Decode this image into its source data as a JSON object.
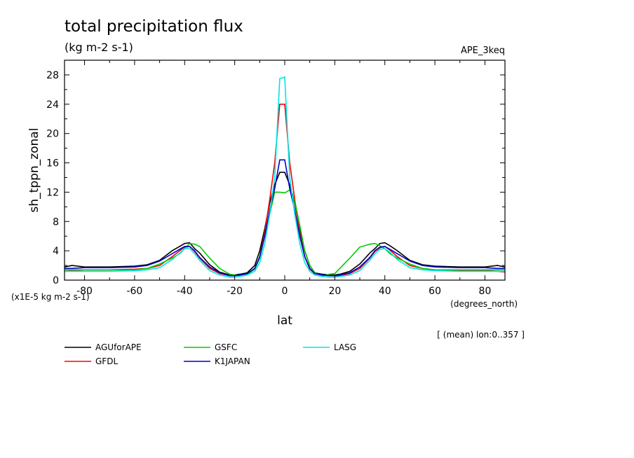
{
  "chart_data": {
    "type": "line",
    "title": "total precipitation flux",
    "subtitle": "(kg m-2 s-1)",
    "experiment": "APE_3keq",
    "ylabel": "sh_tppn_zonal",
    "xlabel": "lat",
    "x_units": "(degrees_north)",
    "y_scale_note": "(x1E-5 kg m-2 s-1)",
    "footnote": "[ (mean) lon:0..357 ]",
    "xlim": [
      -88,
      88
    ],
    "ylim": [
      0,
      30
    ],
    "xticks": [
      -80,
      -60,
      -40,
      -20,
      0,
      20,
      40,
      60,
      80
    ],
    "yticks": [
      0,
      4,
      8,
      12,
      16,
      20,
      24,
      28
    ],
    "x": [
      -88,
      -85,
      -80,
      -70,
      -60,
      -55,
      -50,
      -45,
      -42,
      -40,
      -38,
      -36,
      -34,
      -30,
      -26,
      -22,
      -20,
      -18,
      -15,
      -12,
      -10,
      -8,
      -6,
      -4,
      -2,
      0,
      2,
      4,
      6,
      8,
      10,
      12,
      15,
      18,
      20,
      22,
      26,
      30,
      34,
      36,
      38,
      40,
      42,
      45,
      50,
      55,
      60,
      70,
      80,
      85,
      88
    ],
    "series": [
      {
        "name": "AGUforAPE",
        "color": "#000000",
        "values": [
          1.8,
          2.0,
          1.8,
          1.8,
          1.9,
          2.1,
          2.7,
          4.0,
          4.6,
          5.0,
          5.1,
          4.3,
          3.7,
          2.1,
          1.1,
          0.7,
          0.7,
          0.8,
          1.0,
          2.0,
          4.0,
          7.0,
          10.5,
          13.0,
          14.7,
          14.7,
          13.0,
          10.5,
          7.0,
          4.0,
          2.0,
          1.0,
          0.8,
          0.7,
          0.7,
          0.8,
          1.2,
          2.2,
          3.7,
          4.3,
          5.0,
          5.1,
          4.7,
          4.0,
          2.7,
          2.1,
          1.9,
          1.8,
          1.8,
          2.0,
          1.8
        ]
      },
      {
        "name": "GFDL",
        "color": "#ff0000",
        "values": [
          1.2,
          1.3,
          1.4,
          1.4,
          1.5,
          1.6,
          2.0,
          3.2,
          4.0,
          4.5,
          4.6,
          3.9,
          3.0,
          1.6,
          0.9,
          0.6,
          0.6,
          0.7,
          0.9,
          1.5,
          3.2,
          6.5,
          11.0,
          16.0,
          24.0,
          24.0,
          16.0,
          11.0,
          6.5,
          3.2,
          1.5,
          0.9,
          0.7,
          0.6,
          0.6,
          0.6,
          0.9,
          1.6,
          3.0,
          3.9,
          4.4,
          4.6,
          4.1,
          3.2,
          2.0,
          1.6,
          1.4,
          1.3,
          1.3,
          1.2,
          1.1
        ]
      },
      {
        "name": "GSFC",
        "color": "#00cc00",
        "values": [
          1.4,
          1.4,
          1.4,
          1.4,
          1.4,
          1.6,
          2.2,
          3.0,
          3.6,
          4.3,
          5.0,
          4.9,
          4.6,
          3.0,
          1.6,
          0.8,
          0.7,
          0.6,
          0.8,
          1.5,
          3.0,
          6.0,
          9.0,
          12.0,
          12.0,
          11.9,
          12.3,
          10.8,
          7.5,
          4.0,
          2.0,
          1.0,
          0.6,
          0.8,
          0.9,
          1.6,
          3.0,
          4.5,
          4.9,
          5.0,
          4.7,
          4.3,
          3.6,
          3.0,
          2.2,
          1.6,
          1.4,
          1.4,
          1.4,
          1.4,
          1.4
        ]
      },
      {
        "name": "K1JAPAN",
        "color": "#0000cc",
        "values": [
          1.6,
          1.6,
          1.7,
          1.7,
          1.8,
          2.0,
          2.6,
          3.6,
          4.2,
          4.6,
          4.6,
          4.0,
          3.1,
          1.8,
          1.0,
          0.6,
          0.6,
          0.7,
          0.9,
          1.6,
          3.2,
          6.0,
          9.5,
          12.5,
          16.4,
          16.4,
          12.5,
          9.5,
          6.0,
          3.2,
          1.6,
          0.9,
          0.7,
          0.6,
          0.6,
          0.7,
          1.0,
          1.8,
          3.1,
          4.0,
          4.5,
          4.6,
          4.2,
          3.6,
          2.6,
          2.0,
          1.8,
          1.7,
          1.7,
          1.6,
          1.6
        ]
      },
      {
        "name": "LASG",
        "color": "#00e5e5",
        "values": [
          1.2,
          1.2,
          1.2,
          1.2,
          1.3,
          1.4,
          1.7,
          2.8,
          3.7,
          4.3,
          4.3,
          3.6,
          2.7,
          1.3,
          0.7,
          0.4,
          0.4,
          0.5,
          0.7,
          1.2,
          2.4,
          5.0,
          9.0,
          14.0,
          27.5,
          27.7,
          14.0,
          9.0,
          5.0,
          2.4,
          1.2,
          0.7,
          0.5,
          0.4,
          0.4,
          0.5,
          0.7,
          1.3,
          2.7,
          3.6,
          4.2,
          4.3,
          3.8,
          2.8,
          1.7,
          1.4,
          1.3,
          1.2,
          1.2,
          1.2,
          1.2
        ]
      }
    ],
    "legend_placement": "bottom-left"
  }
}
